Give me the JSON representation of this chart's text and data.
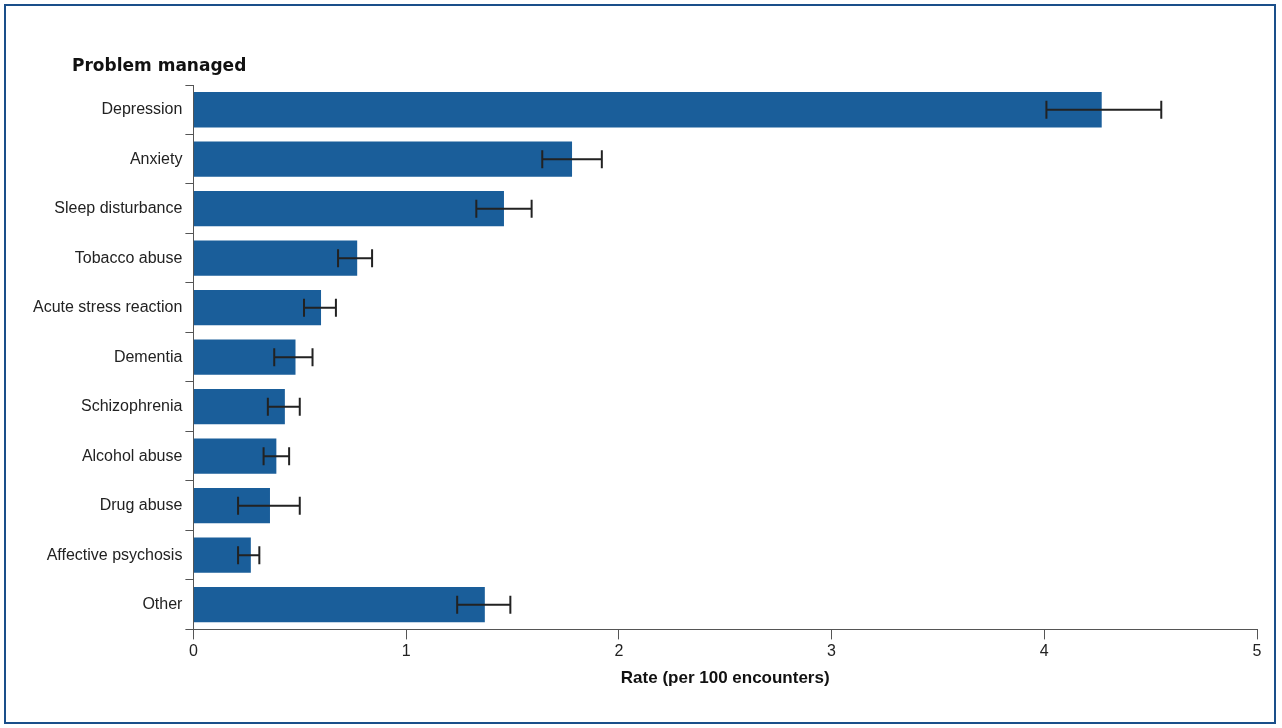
{
  "chart_data": {
    "type": "bar",
    "orientation": "horizontal",
    "ylabel": "Problem managed",
    "xlabel": "Rate (per 100 encounters)",
    "categories": [
      "Depression",
      "Anxiety",
      "Sleep disturbance",
      "Tobacco abuse",
      "Acute stress reaction",
      "Dementia",
      "Schizophrenia",
      "Alcohol abuse",
      "Drug abuse",
      "Affective psychosis",
      "Other"
    ],
    "values": [
      4.27,
      1.78,
      1.46,
      0.77,
      0.6,
      0.48,
      0.43,
      0.39,
      0.36,
      0.27,
      1.37
    ],
    "errors": [
      [
        4.01,
        4.55
      ],
      [
        1.64,
        1.92
      ],
      [
        1.33,
        1.59
      ],
      [
        0.68,
        0.84
      ],
      [
        0.52,
        0.67
      ],
      [
        0.38,
        0.56
      ],
      [
        0.35,
        0.5
      ],
      [
        0.33,
        0.45
      ],
      [
        0.21,
        0.5
      ],
      [
        0.21,
        0.31
      ],
      [
        1.24,
        1.49
      ]
    ],
    "color": "#1a5e9a",
    "xlim": [
      0,
      5
    ],
    "xticks": [
      0,
      1,
      2,
      3,
      4,
      5
    ],
    "grid": false,
    "legend": false
  }
}
